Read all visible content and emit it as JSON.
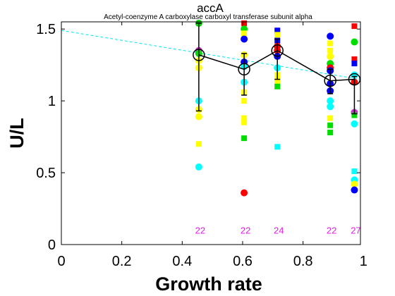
{
  "chart_data": {
    "type": "scatter",
    "title": "accA",
    "subtitle": "Acetyl-coenzyme A carboxylase carboxyl transferase subunit alpha",
    "xlabel": "Growth rate",
    "ylabel": "U/L",
    "xlim": [
      0,
      0.99
    ],
    "ylim": [
      0,
      1.55
    ],
    "xticks": [
      "0",
      "0.2",
      "0.4",
      "0.6",
      "0.8",
      "1"
    ],
    "yticks": [
      "0",
      "0.5",
      "1",
      "1.5"
    ],
    "grid": false,
    "colors": {
      "mean_line": "#000000",
      "trend_line": "#00e5ee",
      "count_labels": "#e020e0",
      "red": "#ff0000",
      "green": "#00dd00",
      "blue": "#0000ff",
      "yellow": "#ffff00",
      "cyan": "#00ffff",
      "magenta": "#cc33cc"
    },
    "trend_line": {
      "x": [
        0,
        0.99
      ],
      "y": [
        1.49,
        1.15
      ]
    },
    "means": {
      "x": [
        0.455,
        0.605,
        0.715,
        0.89,
        0.97
      ],
      "y": [
        1.32,
        1.22,
        1.35,
        1.14,
        1.15
      ],
      "err_low": [
        0.93,
        1.04,
        1.15,
        1.05,
        0.91
      ],
      "err_high": [
        1.54,
        1.33,
        1.43,
        1.22,
        1.17
      ]
    },
    "counts": {
      "x": [
        0.455,
        0.605,
        0.715,
        0.89,
        0.97
      ],
      "labels": [
        "22",
        "22",
        "24",
        "22",
        "27"
      ],
      "y": 0.1
    },
    "points": [
      {
        "x": 0.455,
        "y": 1.54,
        "color": "green",
        "shape": "circle"
      },
      {
        "x": 0.455,
        "y": 1.35,
        "color": "magenta",
        "shape": "circle"
      },
      {
        "x": 0.455,
        "y": 1.33,
        "color": "green",
        "shape": "circle"
      },
      {
        "x": 0.455,
        "y": 1.28,
        "color": "yellow",
        "shape": "circle"
      },
      {
        "x": 0.455,
        "y": 1.23,
        "color": "yellow",
        "shape": "circle"
      },
      {
        "x": 0.455,
        "y": 1.0,
        "color": "cyan",
        "shape": "circle"
      },
      {
        "x": 0.455,
        "y": 0.94,
        "color": "yellow",
        "shape": "circle"
      },
      {
        "x": 0.455,
        "y": 0.89,
        "color": "yellow",
        "shape": "circle"
      },
      {
        "x": 0.455,
        "y": 0.7,
        "color": "yellow",
        "shape": "square"
      },
      {
        "x": 0.455,
        "y": 0.54,
        "color": "cyan",
        "shape": "circle"
      },
      {
        "x": 0.605,
        "y": 1.54,
        "color": "red",
        "shape": "square"
      },
      {
        "x": 0.605,
        "y": 1.5,
        "color": "green",
        "shape": "circle"
      },
      {
        "x": 0.605,
        "y": 1.47,
        "color": "yellow",
        "shape": "square"
      },
      {
        "x": 0.605,
        "y": 1.43,
        "color": "blue",
        "shape": "circle"
      },
      {
        "x": 0.605,
        "y": 1.32,
        "color": "yellow",
        "shape": "circle"
      },
      {
        "x": 0.605,
        "y": 1.27,
        "color": "blue",
        "shape": "circle"
      },
      {
        "x": 0.605,
        "y": 1.24,
        "color": "cyan",
        "shape": "circle"
      },
      {
        "x": 0.605,
        "y": 1.13,
        "color": "cyan",
        "shape": "circle"
      },
      {
        "x": 0.605,
        "y": 1.06,
        "color": "yellow",
        "shape": "square"
      },
      {
        "x": 0.605,
        "y": 1.0,
        "color": "yellow",
        "shape": "square"
      },
      {
        "x": 0.605,
        "y": 0.88,
        "color": "yellow",
        "shape": "square"
      },
      {
        "x": 0.605,
        "y": 0.85,
        "color": "yellow",
        "shape": "square"
      },
      {
        "x": 0.605,
        "y": 0.74,
        "color": "green",
        "shape": "square"
      },
      {
        "x": 0.605,
        "y": 0.36,
        "color": "red",
        "shape": "circle"
      },
      {
        "x": 0.715,
        "y": 1.49,
        "color": "blue",
        "shape": "square"
      },
      {
        "x": 0.715,
        "y": 1.46,
        "color": "yellow",
        "shape": "square"
      },
      {
        "x": 0.715,
        "y": 1.42,
        "color": "blue",
        "shape": "square"
      },
      {
        "x": 0.715,
        "y": 1.38,
        "color": "red",
        "shape": "circle"
      },
      {
        "x": 0.715,
        "y": 1.35,
        "color": "red",
        "shape": "circle"
      },
      {
        "x": 0.715,
        "y": 1.31,
        "color": "blue",
        "shape": "circle"
      },
      {
        "x": 0.715,
        "y": 1.23,
        "color": "cyan",
        "shape": "circle"
      },
      {
        "x": 0.715,
        "y": 1.18,
        "color": "yellow",
        "shape": "square"
      },
      {
        "x": 0.715,
        "y": 1.15,
        "color": "yellow",
        "shape": "square"
      },
      {
        "x": 0.715,
        "y": 1.13,
        "color": "yellow",
        "shape": "square"
      },
      {
        "x": 0.715,
        "y": 1.1,
        "color": "green",
        "shape": "square"
      },
      {
        "x": 0.715,
        "y": 0.68,
        "color": "cyan",
        "shape": "square"
      },
      {
        "x": 0.89,
        "y": 1.45,
        "color": "blue",
        "shape": "circle"
      },
      {
        "x": 0.89,
        "y": 1.4,
        "color": "yellow",
        "shape": "square"
      },
      {
        "x": 0.89,
        "y": 1.35,
        "color": "yellow",
        "shape": "square"
      },
      {
        "x": 0.89,
        "y": 1.31,
        "color": "yellow",
        "shape": "circle"
      },
      {
        "x": 0.89,
        "y": 1.26,
        "color": "green",
        "shape": "circle"
      },
      {
        "x": 0.89,
        "y": 1.23,
        "color": "red",
        "shape": "circle"
      },
      {
        "x": 0.89,
        "y": 1.21,
        "color": "blue",
        "shape": "circle"
      },
      {
        "x": 0.89,
        "y": 1.12,
        "color": "blue",
        "shape": "circle"
      },
      {
        "x": 0.89,
        "y": 1.07,
        "color": "blue",
        "shape": "circle"
      },
      {
        "x": 0.89,
        "y": 1.0,
        "color": "cyan",
        "shape": "circle"
      },
      {
        "x": 0.89,
        "y": 0.96,
        "color": "cyan",
        "shape": "circle"
      },
      {
        "x": 0.89,
        "y": 0.88,
        "color": "yellow",
        "shape": "square"
      },
      {
        "x": 0.89,
        "y": 0.83,
        "color": "green",
        "shape": "square"
      },
      {
        "x": 0.89,
        "y": 0.78,
        "color": "green",
        "shape": "square"
      },
      {
        "x": 0.97,
        "y": 1.52,
        "color": "red",
        "shape": "square"
      },
      {
        "x": 0.97,
        "y": 1.41,
        "color": "green",
        "shape": "circle"
      },
      {
        "x": 0.97,
        "y": 1.29,
        "color": "red",
        "shape": "square"
      },
      {
        "x": 0.97,
        "y": 1.26,
        "color": "blue",
        "shape": "square"
      },
      {
        "x": 0.97,
        "y": 1.18,
        "color": "cyan",
        "shape": "circle"
      },
      {
        "x": 0.97,
        "y": 1.13,
        "color": "red",
        "shape": "circle"
      },
      {
        "x": 0.97,
        "y": 0.92,
        "color": "magenta",
        "shape": "circle"
      },
      {
        "x": 0.97,
        "y": 0.9,
        "color": "green",
        "shape": "square"
      },
      {
        "x": 0.97,
        "y": 0.84,
        "color": "cyan",
        "shape": "circle"
      },
      {
        "x": 0.97,
        "y": 0.51,
        "color": "cyan",
        "shape": "square"
      },
      {
        "x": 0.97,
        "y": 0.45,
        "color": "cyan",
        "shape": "circle"
      },
      {
        "x": 0.97,
        "y": 0.42,
        "color": "yellow",
        "shape": "circle"
      },
      {
        "x": 0.97,
        "y": 0.38,
        "color": "blue",
        "shape": "circle"
      }
    ]
  }
}
